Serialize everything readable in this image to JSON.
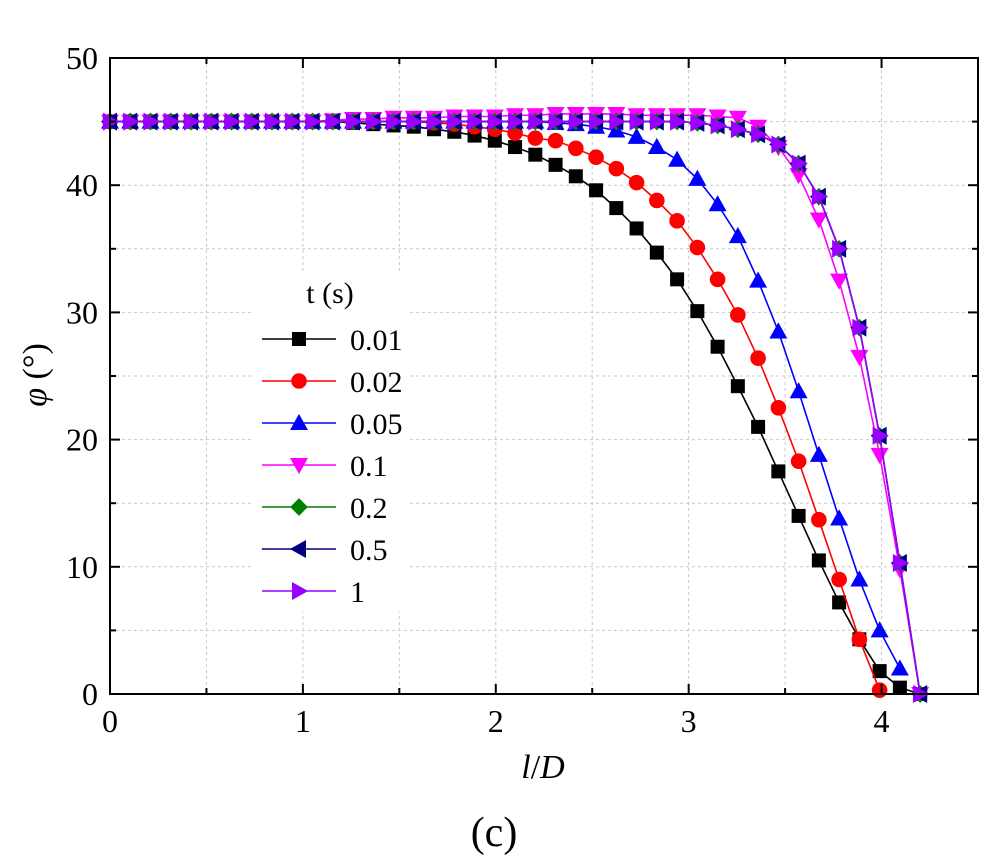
{
  "panel_label": "(c)",
  "chart_data": {
    "type": "line",
    "title": "",
    "xlabel": "l/D",
    "ylabel": "φ (°)",
    "xlim": [
      0,
      4.5
    ],
    "ylim": [
      0,
      50
    ],
    "x_ticks": [
      0,
      1,
      2,
      3,
      4
    ],
    "x_tick_labels": [
      "0",
      "1",
      "2",
      "3",
      "4"
    ],
    "y_ticks": [
      0,
      10,
      20,
      30,
      40,
      50
    ],
    "y_tick_labels": [
      "0",
      "10",
      "20",
      "30",
      "40",
      "50"
    ],
    "grid": true,
    "legend": {
      "title": "t (s)",
      "position": "center-left"
    },
    "series": [
      {
        "name": "0.01",
        "color": "#000000",
        "marker": "square",
        "x": [
          0.0,
          0.105,
          0.21,
          0.315,
          0.42,
          0.525,
          0.63,
          0.735,
          0.84,
          0.945,
          1.05,
          1.155,
          1.26,
          1.365,
          1.47,
          1.575,
          1.68,
          1.785,
          1.89,
          1.995,
          2.1,
          2.205,
          2.31,
          2.415,
          2.52,
          2.625,
          2.73,
          2.835,
          2.94,
          3.045,
          3.15,
          3.255,
          3.36,
          3.465,
          3.57,
          3.675,
          3.78,
          3.885,
          3.99,
          4.095,
          4.2
        ],
        "y": [
          45.0,
          45.0,
          45.0,
          45.0,
          45.0,
          45.0,
          45.0,
          45.0,
          45.0,
          45.0,
          45.0,
          45.0,
          44.9,
          44.8,
          44.7,
          44.6,
          44.4,
          44.2,
          43.9,
          43.5,
          43.0,
          42.4,
          41.6,
          40.7,
          39.6,
          38.2,
          36.6,
          34.7,
          32.6,
          30.1,
          27.3,
          24.2,
          21.0,
          17.5,
          14.0,
          10.5,
          7.2,
          4.3,
          1.8,
          0.5,
          0.0
        ]
      },
      {
        "name": "0.02",
        "color": "#ff0000",
        "marker": "circle",
        "x": [
          0.0,
          0.105,
          0.21,
          0.315,
          0.42,
          0.525,
          0.63,
          0.735,
          0.84,
          0.945,
          1.05,
          1.155,
          1.26,
          1.365,
          1.47,
          1.575,
          1.68,
          1.785,
          1.89,
          1.995,
          2.1,
          2.205,
          2.31,
          2.415,
          2.52,
          2.625,
          2.73,
          2.835,
          2.94,
          3.045,
          3.15,
          3.255,
          3.36,
          3.465,
          3.57,
          3.675,
          3.78,
          3.885,
          3.99
        ],
        "y": [
          45.0,
          45.0,
          45.0,
          45.0,
          45.0,
          45.0,
          45.0,
          45.0,
          45.0,
          45.0,
          45.0,
          45.0,
          45.0,
          45.0,
          45.0,
          45.0,
          44.9,
          44.8,
          44.6,
          44.4,
          44.1,
          43.7,
          43.5,
          42.9,
          42.2,
          41.3,
          40.2,
          38.8,
          37.2,
          35.1,
          32.6,
          29.8,
          26.4,
          22.5,
          18.3,
          13.7,
          9.0,
          4.3,
          0.3
        ]
      },
      {
        "name": "0.05",
        "color": "#0000ff",
        "marker": "triangle-up",
        "x": [
          0.0,
          0.105,
          0.21,
          0.315,
          0.42,
          0.525,
          0.63,
          0.735,
          0.84,
          0.945,
          1.05,
          1.155,
          1.26,
          1.365,
          1.47,
          1.575,
          1.68,
          1.785,
          1.89,
          1.995,
          2.1,
          2.205,
          2.31,
          2.415,
          2.52,
          2.625,
          2.73,
          2.835,
          2.94,
          3.045,
          3.15,
          3.255,
          3.36,
          3.465,
          3.57,
          3.675,
          3.78,
          3.885,
          3.99,
          4.095
        ],
        "y": [
          45.0,
          45.0,
          45.0,
          45.0,
          45.0,
          45.0,
          45.0,
          45.0,
          45.0,
          45.0,
          45.0,
          45.0,
          45.0,
          45.0,
          45.0,
          45.0,
          45.0,
          45.0,
          45.0,
          45.0,
          45.0,
          45.0,
          44.9,
          44.8,
          44.6,
          44.3,
          43.8,
          43.0,
          42.0,
          40.5,
          38.5,
          36.0,
          32.5,
          28.5,
          23.8,
          18.8,
          13.8,
          9.0,
          5.0,
          2.0
        ]
      },
      {
        "name": "0.1",
        "color": "#ff00ff",
        "marker": "triangle-down",
        "x": [
          0.0,
          0.105,
          0.21,
          0.315,
          0.42,
          0.525,
          0.63,
          0.735,
          0.84,
          0.945,
          1.05,
          1.155,
          1.26,
          1.365,
          1.47,
          1.575,
          1.68,
          1.785,
          1.89,
          1.995,
          2.1,
          2.205,
          2.31,
          2.415,
          2.52,
          2.625,
          2.73,
          2.835,
          2.94,
          3.045,
          3.15,
          3.255,
          3.36,
          3.465,
          3.57,
          3.675,
          3.78,
          3.885,
          3.99,
          4.095,
          4.2
        ],
        "y": [
          45.0,
          45.0,
          45.0,
          45.0,
          45.0,
          45.0,
          45.0,
          45.0,
          45.0,
          45.0,
          45.0,
          45.1,
          45.2,
          45.2,
          45.3,
          45.3,
          45.3,
          45.4,
          45.4,
          45.4,
          45.5,
          45.5,
          45.6,
          45.6,
          45.6,
          45.6,
          45.5,
          45.5,
          45.5,
          45.5,
          45.4,
          45.3,
          44.6,
          43.0,
          40.8,
          37.3,
          32.5,
          26.5,
          18.8,
          9.8,
          0.0
        ]
      },
      {
        "name": "0.2",
        "color": "#008000",
        "marker": "diamond",
        "x": [
          0.0,
          0.105,
          0.21,
          0.315,
          0.42,
          0.525,
          0.63,
          0.735,
          0.84,
          0.945,
          1.05,
          1.155,
          1.26,
          1.365,
          1.47,
          1.575,
          1.68,
          1.785,
          1.89,
          1.995,
          2.1,
          2.205,
          2.31,
          2.415,
          2.52,
          2.625,
          2.73,
          2.835,
          2.94,
          3.045,
          3.15,
          3.255,
          3.36,
          3.465,
          3.57,
          3.675,
          3.78,
          3.885,
          3.99,
          4.095,
          4.2
        ],
        "y": [
          45.0,
          45.0,
          45.0,
          45.0,
          45.0,
          45.0,
          45.0,
          45.0,
          45.0,
          45.0,
          45.0,
          45.0,
          45.0,
          45.0,
          45.0,
          45.0,
          45.0,
          45.0,
          45.0,
          45.0,
          45.0,
          45.0,
          45.0,
          45.0,
          45.0,
          45.0,
          45.0,
          45.0,
          45.0,
          44.9,
          44.7,
          44.4,
          44.0,
          43.2,
          41.7,
          39.1,
          35.0,
          28.8,
          20.3,
          10.3,
          0.0
        ]
      },
      {
        "name": "0.5",
        "color": "#000080",
        "marker": "triangle-left",
        "x": [
          0.0,
          0.105,
          0.21,
          0.315,
          0.42,
          0.525,
          0.63,
          0.735,
          0.84,
          0.945,
          1.05,
          1.155,
          1.26,
          1.365,
          1.47,
          1.575,
          1.68,
          1.785,
          1.89,
          1.995,
          2.1,
          2.205,
          2.31,
          2.415,
          2.52,
          2.625,
          2.73,
          2.835,
          2.94,
          3.045,
          3.15,
          3.255,
          3.36,
          3.465,
          3.57,
          3.675,
          3.78,
          3.885,
          3.99,
          4.095,
          4.2
        ],
        "y": [
          45.0,
          45.0,
          45.0,
          45.0,
          45.0,
          45.0,
          45.0,
          45.0,
          45.0,
          45.0,
          45.0,
          45.0,
          45.0,
          45.0,
          45.0,
          45.0,
          45.0,
          45.0,
          45.0,
          45.0,
          45.0,
          45.0,
          45.0,
          45.0,
          45.0,
          45.0,
          45.0,
          45.0,
          45.0,
          44.9,
          44.7,
          44.4,
          44.0,
          43.2,
          41.7,
          39.1,
          35.0,
          28.8,
          20.3,
          10.3,
          0.0
        ]
      },
      {
        "name": "1",
        "color": "#9900ff",
        "marker": "triangle-right",
        "x": [
          0.0,
          0.105,
          0.21,
          0.315,
          0.42,
          0.525,
          0.63,
          0.735,
          0.84,
          0.945,
          1.05,
          1.155,
          1.26,
          1.365,
          1.47,
          1.575,
          1.68,
          1.785,
          1.89,
          1.995,
          2.1,
          2.205,
          2.31,
          2.415,
          2.52,
          2.625,
          2.73,
          2.835,
          2.94,
          3.045,
          3.15,
          3.255,
          3.36,
          3.465,
          3.57,
          3.675,
          3.78,
          3.885,
          3.99,
          4.095,
          4.2
        ],
        "y": [
          45.0,
          45.0,
          45.0,
          45.0,
          45.0,
          45.0,
          45.0,
          45.0,
          45.0,
          45.0,
          45.0,
          45.0,
          45.0,
          45.0,
          45.0,
          45.0,
          45.0,
          45.0,
          45.0,
          45.0,
          45.0,
          45.0,
          45.0,
          45.0,
          45.0,
          45.0,
          45.0,
          45.0,
          45.0,
          44.9,
          44.7,
          44.4,
          44.0,
          43.2,
          41.7,
          39.1,
          35.0,
          28.8,
          20.3,
          10.3,
          0.0
        ]
      }
    ]
  }
}
